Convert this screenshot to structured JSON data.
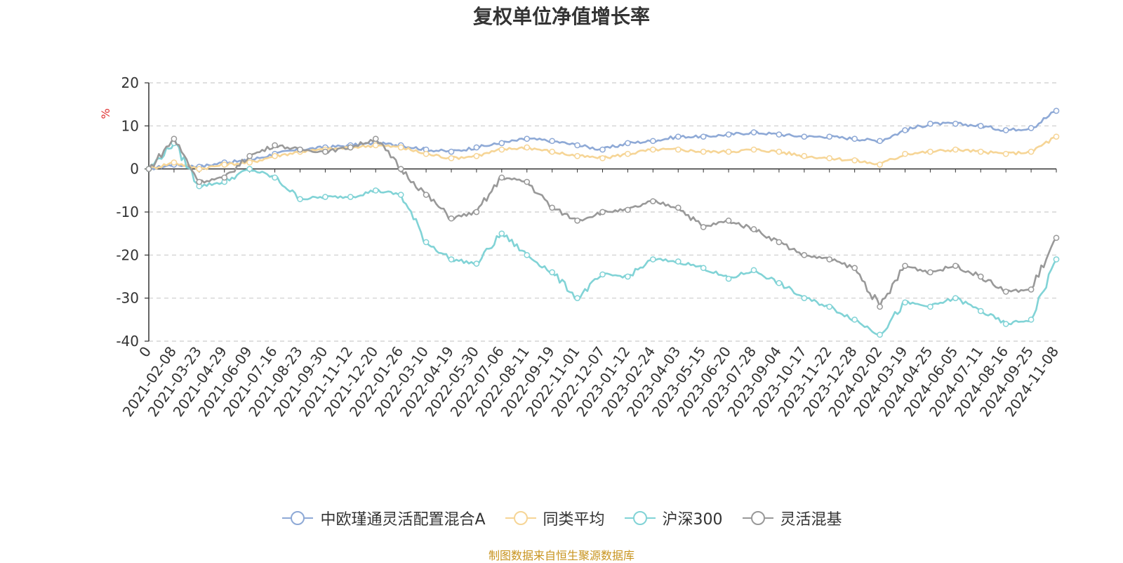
{
  "chart_data": {
    "type": "line",
    "title": "复权单位净值增长率",
    "ylabel": "%",
    "ylim": [
      -40,
      20
    ],
    "yticks": [
      20,
      10,
      0,
      -10,
      -20,
      -30,
      -40
    ],
    "grid": true,
    "legend_position": "bottom",
    "x_start_label": "0",
    "x_tick_labels": [
      "2021-02-08",
      "2021-03-23",
      "2021-04-29",
      "2021-06-09",
      "2021-07-16",
      "2021-08-23",
      "2021-09-30",
      "2021-11-12",
      "2021-12-20",
      "2022-01-26",
      "2022-03-10",
      "2022-04-19",
      "2022-05-30",
      "2022-07-06",
      "2022-08-11",
      "2022-09-19",
      "2022-11-01",
      "2022-12-07",
      "2023-01-12",
      "2023-02-24",
      "2023-04-03",
      "2023-05-15",
      "2023-06-20",
      "2023-07-28",
      "2023-09-04",
      "2023-10-17",
      "2023-11-22",
      "2023-12-28",
      "2024-02-02",
      "2024-03-19",
      "2024-04-25",
      "2024-06-05",
      "2024-07-11",
      "2024-08-16",
      "2024-09-25",
      "2024-11-08"
    ],
    "x": [
      "0",
      "2021-02-08",
      "2021-03-23",
      "2021-04-29",
      "2021-06-09",
      "2021-07-16",
      "2021-08-23",
      "2021-09-30",
      "2021-11-12",
      "2021-12-20",
      "2022-01-26",
      "2022-03-10",
      "2022-04-19",
      "2022-05-30",
      "2022-07-06",
      "2022-08-11",
      "2022-09-19",
      "2022-11-01",
      "2022-12-07",
      "2023-01-12",
      "2023-02-24",
      "2023-04-03",
      "2023-05-15",
      "2023-06-20",
      "2023-07-28",
      "2023-09-04",
      "2023-10-17",
      "2023-11-22",
      "2023-12-28",
      "2024-02-02",
      "2024-03-19",
      "2024-04-25",
      "2024-06-05",
      "2024-07-11",
      "2024-08-16",
      "2024-09-25",
      "2024-11-08"
    ],
    "series": [
      {
        "name": "中欧瑾通灵活配置混合A",
        "color": "#8ea9d6",
        "values": [
          0,
          1.0,
          0.5,
          1.5,
          2.0,
          3.5,
          4.5,
          5.0,
          5.5,
          6.0,
          5.5,
          4.5,
          4.0,
          5.0,
          6.0,
          7.0,
          6.5,
          5.5,
          4.5,
          6.0,
          6.5,
          7.5,
          7.5,
          8.0,
          8.5,
          8.0,
          7.5,
          7.5,
          7.0,
          6.5,
          9.0,
          10.5,
          10.5,
          10.0,
          9.0,
          9.5,
          13.5
        ]
      },
      {
        "name": "同类平均",
        "color": "#f6d596",
        "values": [
          0,
          1.5,
          0.0,
          1.0,
          1.5,
          3.0,
          4.0,
          4.5,
          5.0,
          5.5,
          5.0,
          3.5,
          2.5,
          3.0,
          4.5,
          5.0,
          4.0,
          3.0,
          2.5,
          3.5,
          4.5,
          4.5,
          4.0,
          4.0,
          4.5,
          4.0,
          3.0,
          2.5,
          2.0,
          1.0,
          3.5,
          4.0,
          4.5,
          4.0,
          3.5,
          4.0,
          7.5
        ]
      },
      {
        "name": "沪深300",
        "color": "#81d3d6",
        "values": [
          0,
          6.0,
          -4.0,
          -3.0,
          0.0,
          -2.0,
          -7.0,
          -6.5,
          -6.5,
          -5.0,
          -6.0,
          -17.0,
          -21.0,
          -22.0,
          -15.0,
          -20.0,
          -24.0,
          -30.0,
          -24.5,
          -25.0,
          -21.0,
          -21.5,
          -23.0,
          -25.5,
          -23.5,
          -26.5,
          -30.0,
          -32.0,
          -35.0,
          -38.5,
          -31.0,
          -32.0,
          -30.0,
          -33.0,
          -36.0,
          -35.0,
          -21.0
        ]
      },
      {
        "name": "灵活混基",
        "color": "#999999",
        "values": [
          0,
          7.0,
          -3.0,
          -2.0,
          3.0,
          5.5,
          4.5,
          4.0,
          5.0,
          7.0,
          0.0,
          -6.0,
          -11.5,
          -10.0,
          -2.0,
          -3.0,
          -9.0,
          -12.0,
          -10.0,
          -9.5,
          -7.5,
          -9.0,
          -13.5,
          -12.0,
          -14.0,
          -17.0,
          -20.0,
          -21.0,
          -23.0,
          -32.0,
          -22.5,
          -24.0,
          -22.5,
          -25.0,
          -28.5,
          -28.0,
          -16.0
        ]
      }
    ]
  },
  "source_note": "制图数据来自恒生聚源数据库"
}
